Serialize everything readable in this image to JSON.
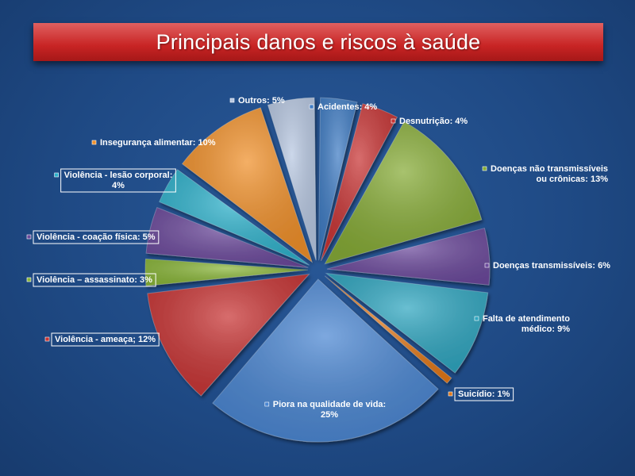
{
  "title": "Principais danos e riscos à saúde",
  "chart_data": {
    "type": "pie",
    "title": "Principais danos e riscos à saúde",
    "unit": "%",
    "slices": [
      {
        "label": "Acidentes: 4%",
        "value": 4,
        "color": "#3f7cc4"
      },
      {
        "label": "Desnutrição: 4%",
        "value": 4,
        "color": "#c83434"
      },
      {
        "label": "Doenças não transmissíveis ou crônicas: 13%",
        "value": 13,
        "color": "#86ab36"
      },
      {
        "label": "Doenças transmissíveis: 6%",
        "value": 6,
        "color": "#6c4a9c"
      },
      {
        "label": "Falta de atendimento médico: 9%",
        "value": 9,
        "color": "#2fa6c0"
      },
      {
        "label": "Suicídio: 1%",
        "value": 1,
        "color": "#e27a1c"
      },
      {
        "label": "Piora na qualidade de vida: 25%",
        "value": 25,
        "color": "#4a86d2"
      },
      {
        "label": "Violência - ameaça; 12%",
        "value": 12,
        "color": "#c83434"
      },
      {
        "label": "Violência – assassinato: 3%",
        "value": 3,
        "color": "#8ab63a"
      },
      {
        "label": "Violência - coação física: 5%",
        "value": 5,
        "color": "#6c4a9c"
      },
      {
        "label": "Violência - lesão corporal: 4%",
        "value": 4,
        "color": "#2fb2cc"
      },
      {
        "label": "Insegurança alimentar: 10%",
        "value": 10,
        "color": "#f0902a"
      },
      {
        "label": "Outros: 5%",
        "value": 5,
        "color": "#b8c8e2"
      }
    ]
  }
}
